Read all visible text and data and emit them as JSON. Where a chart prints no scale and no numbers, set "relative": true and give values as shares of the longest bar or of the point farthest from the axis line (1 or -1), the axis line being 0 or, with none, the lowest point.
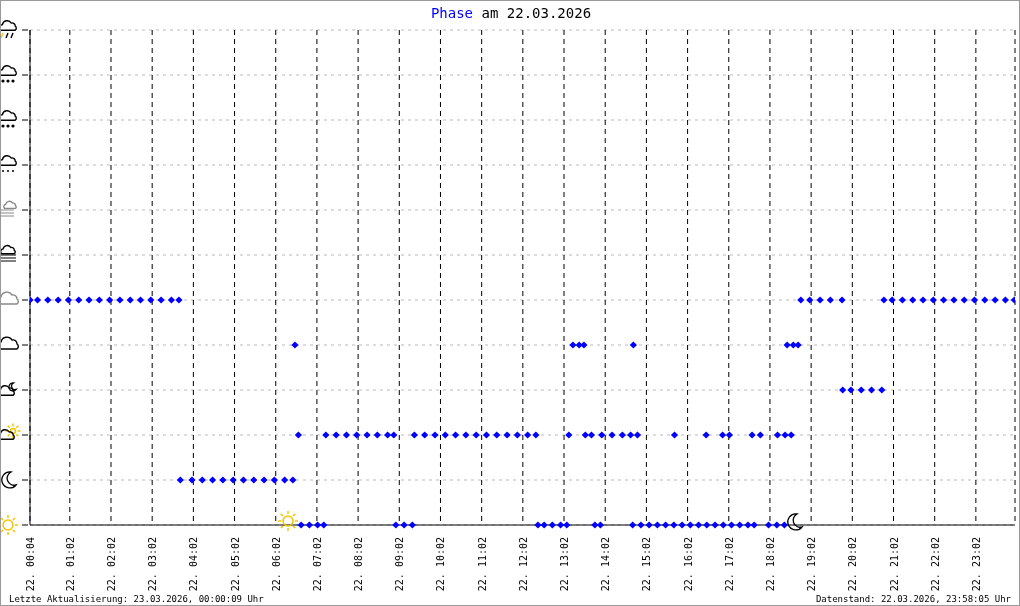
{
  "chart_data": {
    "type": "scatter",
    "title": "Phase am 22.03.2026",
    "relative": true,
    "x": [
      "2026-03-22T00:04",
      "2026-03-22T00:15",
      "2026-03-22T00:30",
      "2026-03-22T00:45",
      "2026-03-22T01:00",
      "2026-03-22T01:15",
      "2026-03-22T01:30",
      "2026-03-22T01:45",
      "2026-03-22T02:00",
      "2026-03-22T02:15",
      "2026-03-22T02:30",
      "2026-03-22T02:45",
      "2026-03-22T03:00",
      "2026-03-22T03:15",
      "2026-03-22T03:30",
      "2026-03-22T03:41",
      "2026-03-22T03:43",
      "2026-03-22T04:00",
      "2026-03-22T04:15",
      "2026-03-22T04:30",
      "2026-03-22T04:45",
      "2026-03-22T05:00",
      "2026-03-22T05:15",
      "2026-03-22T05:30",
      "2026-03-22T05:45",
      "2026-03-22T06:00",
      "2026-03-22T06:15",
      "2026-03-22T06:27",
      "2026-03-22T06:30",
      "2026-03-22T06:35",
      "2026-03-22T06:39",
      "2026-03-22T06:51",
      "2026-03-22T07:03",
      "2026-03-22T07:12",
      "2026-03-22T07:15",
      "2026-03-22T07:30",
      "2026-03-22T07:45",
      "2026-03-22T08:00",
      "2026-03-22T08:15",
      "2026-03-22T08:30",
      "2026-03-22T08:45",
      "2026-03-22T08:54",
      "2026-03-22T08:57",
      "2026-03-22T09:09",
      "2026-03-22T09:21",
      "2026-03-22T09:24",
      "2026-03-22T09:39",
      "2026-03-22T09:54",
      "2026-03-22T10:09",
      "2026-03-22T10:24",
      "2026-03-22T10:39",
      "2026-03-22T10:54",
      "2026-03-22T11:09",
      "2026-03-22T11:24",
      "2026-03-22T11:39",
      "2026-03-22T11:54",
      "2026-03-22T12:09",
      "2026-03-22T12:21",
      "2026-03-22T12:24",
      "2026-03-22T12:33",
      "2026-03-22T12:45",
      "2026-03-22T12:57",
      "2026-03-22T13:06",
      "2026-03-22T13:09",
      "2026-03-22T13:15",
      "2026-03-22T13:24",
      "2026-03-22T13:31",
      "2026-03-22T13:33",
      "2026-03-22T13:42",
      "2026-03-22T13:47",
      "2026-03-22T13:55",
      "2026-03-22T13:57",
      "2026-03-22T14:12",
      "2026-03-22T14:27",
      "2026-03-22T14:39",
      "2026-03-22T14:42",
      "2026-03-22T14:43",
      "2026-03-22T14:49",
      "2026-03-22T14:54",
      "2026-03-22T15:06",
      "2026-03-22T15:18",
      "2026-03-22T15:30",
      "2026-03-22T15:42",
      "2026-03-22T15:43",
      "2026-03-22T15:54",
      "2026-03-22T16:06",
      "2026-03-22T16:18",
      "2026-03-22T16:29",
      "2026-03-22T16:30",
      "2026-03-22T16:42",
      "2026-03-22T16:53",
      "2026-03-22T16:54",
      "2026-03-22T17:03",
      "2026-03-22T17:06",
      "2026-03-22T17:18",
      "2026-03-22T17:30",
      "2026-03-22T17:36",
      "2026-03-22T17:39",
      "2026-03-22T17:48",
      "2026-03-22T18:00",
      "2026-03-22T18:12",
      "2026-03-22T18:13",
      "2026-03-22T18:23",
      "2026-03-22T18:24",
      "2026-03-22T18:27",
      "2026-03-22T18:33",
      "2026-03-22T18:36",
      "2026-03-22T18:43",
      "2026-03-22T18:47",
      "2026-03-22T19:00",
      "2026-03-22T19:15",
      "2026-03-22T19:30",
      "2026-03-22T19:47",
      "2026-03-22T19:48",
      "2026-03-22T20:00",
      "2026-03-22T20:15",
      "2026-03-22T20:30",
      "2026-03-22T20:45",
      "2026-03-22T20:48",
      "2026-03-22T21:00",
      "2026-03-22T21:15",
      "2026-03-22T21:30",
      "2026-03-22T21:45",
      "2026-03-22T22:00",
      "2026-03-22T22:15",
      "2026-03-22T22:30",
      "2026-03-22T22:45",
      "2026-03-22T23:00",
      "2026-03-22T23:15",
      "2026-03-22T23:30",
      "2026-03-22T23:45",
      "2026-03-22T23:58"
    ],
    "series": [
      {
        "color": "#0000ff",
        "values": [
          1,
          1,
          1,
          1,
          1,
          1,
          1,
          1,
          1,
          1,
          1,
          1,
          1,
          1,
          1,
          1,
          0.2,
          0.2,
          0.2,
          0.2,
          0.2,
          0.2,
          0.2,
          0.2,
          0.2,
          0.2,
          0.2,
          0.2,
          0.8,
          0.4,
          0,
          0,
          0,
          0,
          0.4,
          0.4,
          0.4,
          0.4,
          0.4,
          0.4,
          0.4,
          0.4,
          0,
          0,
          0,
          0.4,
          0.4,
          0.4,
          0.4,
          0.4,
          0.4,
          0.4,
          0.4,
          0.4,
          0.4,
          0.4,
          0.4,
          0.4,
          0,
          0,
          0,
          0,
          0,
          0.4,
          0.8,
          0.8,
          0.8,
          0.4,
          0.4,
          0,
          0,
          0.4,
          0.4,
          0.4,
          0.4,
          0,
          0.8,
          0.4,
          0,
          0,
          0,
          0,
          0,
          0.4,
          0,
          0,
          0,
          0.4,
          0,
          0,
          0.4,
          0,
          0.4,
          0,
          0,
          0,
          0.4,
          0,
          0.4,
          0,
          0,
          0.4,
          0,
          0.4,
          0.8,
          0.4,
          0.8,
          0.8,
          1,
          1,
          1,
          1,
          1,
          0.6,
          0.6,
          0.6,
          0.6,
          0.6,
          1,
          1,
          1,
          1,
          1,
          1,
          1,
          1,
          1,
          1,
          1,
          1,
          1,
          1
        ]
      }
    ],
    "xlim": [
      "2026-03-22T00:04",
      "2026-03-22T23:59"
    ],
    "xticks": [
      {
        "value": "2026-03-22T00:04",
        "label": "22. 00:04"
      },
      {
        "value": "2026-03-22T01:02",
        "label": "22. 01:02"
      },
      {
        "value": "2026-03-22T02:02",
        "label": "22. 02:02"
      },
      {
        "value": "2026-03-22T03:02",
        "label": "22. 03:02"
      },
      {
        "value": "2026-03-22T04:02",
        "label": "22. 04:02"
      },
      {
        "value": "2026-03-22T05:02",
        "label": "22. 05:02"
      },
      {
        "value": "2026-03-22T06:02",
        "label": "22. 06:02"
      },
      {
        "value": "2026-03-22T07:02",
        "label": "22. 07:02"
      },
      {
        "value": "2026-03-22T08:02",
        "label": "22. 08:02"
      },
      {
        "value": "2026-03-22T09:02",
        "label": "22. 09:02"
      },
      {
        "value": "2026-03-22T10:02",
        "label": "22. 10:02"
      },
      {
        "value": "2026-03-22T11:02",
        "label": "22. 11:02"
      },
      {
        "value": "2026-03-22T12:02",
        "label": "22. 12:02"
      },
      {
        "value": "2026-03-22T13:02",
        "label": "22. 13:02"
      },
      {
        "value": "2026-03-22T14:02",
        "label": "22. 14:02"
      },
      {
        "value": "2026-03-22T15:02",
        "label": "22. 15:02"
      },
      {
        "value": "2026-03-22T16:02",
        "label": "22. 16:02"
      },
      {
        "value": "2026-03-22T17:02",
        "label": "22. 17:02"
      },
      {
        "value": "2026-03-22T18:02",
        "label": "22. 18:02"
      },
      {
        "value": "2026-03-22T19:02",
        "label": "22. 19:02"
      },
      {
        "value": "2026-03-22T20:02",
        "label": "22. 20:02"
      },
      {
        "value": "2026-03-22T21:02",
        "label": "22. 21:02"
      },
      {
        "value": "2026-03-22T22:02",
        "label": "22. 22:02"
      },
      {
        "value": "2026-03-22T23:02",
        "label": "22. 23:02"
      }
    ],
    "grid": true,
    "marker": "diamond",
    "annotations": [
      "Letzte Aktualisierung: 23.03.2026, 00:00:09 Uhr",
      "Datenstand: 22.03.2026, 23:58:05 Uhr"
    ]
  }
}
